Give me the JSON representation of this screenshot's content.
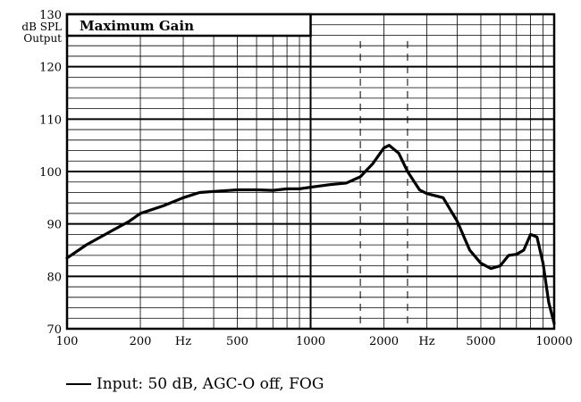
{
  "chart_data": {
    "type": "line",
    "title": "Maximum Gain",
    "ylabel": [
      "dB SPL",
      "Output"
    ],
    "xscale": "log",
    "xlim": [
      100,
      10000
    ],
    "ylim": [
      70,
      130
    ],
    "x_ticks": [
      {
        "value": 100,
        "label": "100"
      },
      {
        "value": 200,
        "label": "200"
      },
      {
        "value": 500,
        "label": "500"
      },
      {
        "value": 1000,
        "label": "1000"
      },
      {
        "value": 2000,
        "label": "2000"
      },
      {
        "value": 5000,
        "label": "5000"
      },
      {
        "value": 10000,
        "label": "10000"
      }
    ],
    "x_unit_labels": [
      {
        "value": 300,
        "label": "Hz"
      },
      {
        "value": 3000,
        "label": "Hz"
      }
    ],
    "y_ticks": [
      {
        "value": 70,
        "label": "70"
      },
      {
        "value": 80,
        "label": "80"
      },
      {
        "value": 90,
        "label": "90"
      },
      {
        "value": 100,
        "label": "100"
      },
      {
        "value": 110,
        "label": "110"
      },
      {
        "value": 120,
        "label": "120"
      },
      {
        "value": 130,
        "label": "130"
      }
    ],
    "dashed_verticals": [
      1600,
      2500
    ],
    "grid": true,
    "series": [
      {
        "name": "Input: 50 dB, AGC-O off, FOG",
        "color": "#000000",
        "points": [
          [
            100,
            83.5
          ],
          [
            120,
            86
          ],
          [
            150,
            88.5
          ],
          [
            180,
            90.5
          ],
          [
            200,
            92
          ],
          [
            250,
            93.5
          ],
          [
            300,
            95
          ],
          [
            350,
            96
          ],
          [
            400,
            96.2
          ],
          [
            500,
            96.5
          ],
          [
            600,
            96.5
          ],
          [
            700,
            96.4
          ],
          [
            800,
            96.7
          ],
          [
            900,
            96.7
          ],
          [
            1000,
            97
          ],
          [
            1200,
            97.5
          ],
          [
            1400,
            97.8
          ],
          [
            1600,
            99
          ],
          [
            1800,
            101.5
          ],
          [
            2000,
            104.5
          ],
          [
            2100,
            105
          ],
          [
            2300,
            103.5
          ],
          [
            2500,
            100
          ],
          [
            2800,
            96.5
          ],
          [
            3000,
            95.8
          ],
          [
            3500,
            95
          ],
          [
            4000,
            90.5
          ],
          [
            4500,
            85
          ],
          [
            5000,
            82.5
          ],
          [
            5500,
            81.5
          ],
          [
            6000,
            82
          ],
          [
            6500,
            84
          ],
          [
            7000,
            84.2
          ],
          [
            7500,
            85
          ],
          [
            8000,
            88
          ],
          [
            8500,
            87.5
          ],
          [
            9000,
            82.5
          ],
          [
            9500,
            75
          ],
          [
            10000,
            71
          ]
        ]
      }
    ],
    "legend": {
      "position": "bottom-left"
    }
  }
}
